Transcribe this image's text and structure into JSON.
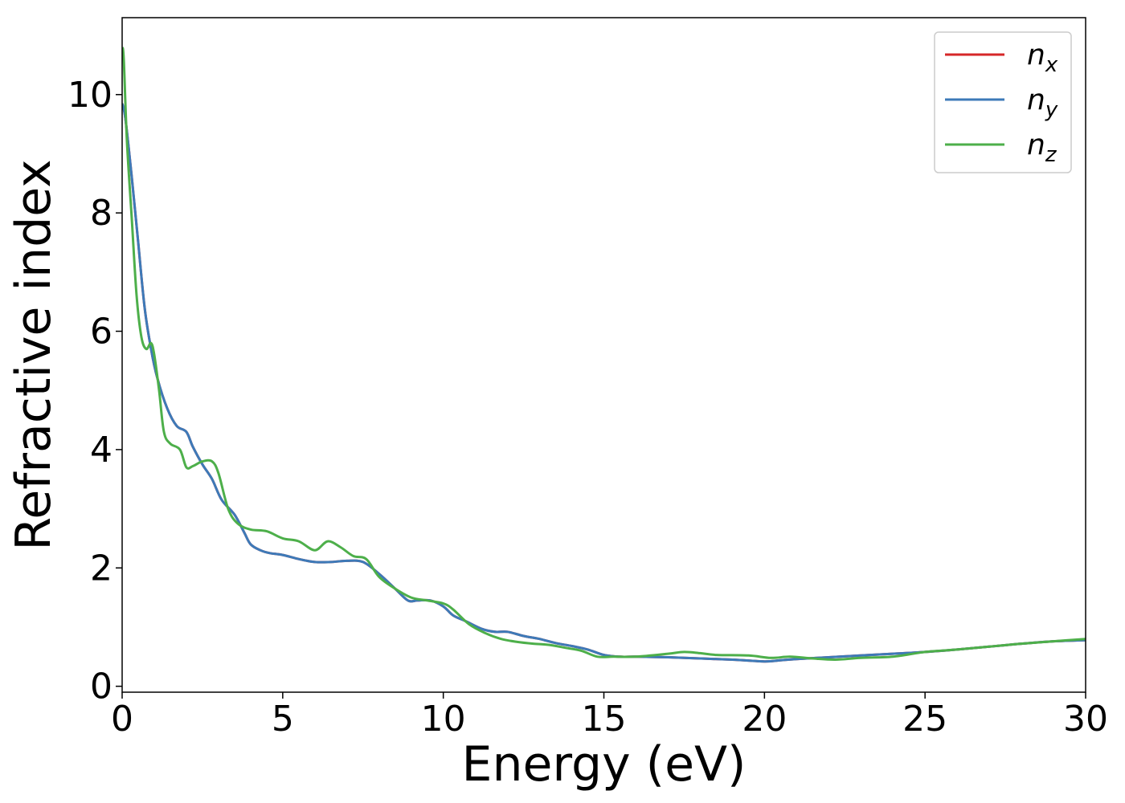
{
  "chart_data": {
    "type": "line",
    "title": "",
    "xlabel": "Energy (eV)",
    "ylabel": "Refractive index",
    "xlim": [
      0,
      30
    ],
    "ylim": [
      -0.1,
      11.3
    ],
    "xticks": [
      0,
      5,
      10,
      15,
      20,
      25,
      30
    ],
    "yticks": [
      0,
      2,
      4,
      6,
      8,
      10
    ],
    "grid": false,
    "legend_position": "top-right",
    "series": [
      {
        "name": "n",
        "subscript": "x",
        "color": "#d62728",
        "x": [
          0,
          0.1,
          0.3,
          0.5,
          0.7,
          0.9,
          1.1,
          1.4,
          1.7,
          2.0,
          2.2,
          2.5,
          2.8,
          3.1,
          3.5,
          3.8,
          4.0,
          4.3,
          4.6,
          5.0,
          5.5,
          6.0,
          6.5,
          7.0,
          7.5,
          8.0,
          8.5,
          8.9,
          9.2,
          9.6,
          10.0,
          10.3,
          10.7,
          11.2,
          11.6,
          12.0,
          12.5,
          13.0,
          13.5,
          14.0,
          14.5,
          15.0,
          15.5,
          16.0,
          17.0,
          18.0,
          19.0,
          20.0,
          20.5,
          21.0,
          22.0,
          23.0,
          24.0,
          25.0,
          26.0,
          27.0,
          28.0,
          29.0,
          30.0
        ],
        "y": [
          9.85,
          9.6,
          8.6,
          7.5,
          6.4,
          5.7,
          5.2,
          4.7,
          4.4,
          4.3,
          4.05,
          3.75,
          3.5,
          3.15,
          2.9,
          2.6,
          2.4,
          2.3,
          2.25,
          2.22,
          2.15,
          2.1,
          2.1,
          2.12,
          2.1,
          1.9,
          1.65,
          1.45,
          1.45,
          1.45,
          1.35,
          1.2,
          1.1,
          0.97,
          0.92,
          0.92,
          0.85,
          0.8,
          0.73,
          0.68,
          0.62,
          0.53,
          0.5,
          0.5,
          0.49,
          0.47,
          0.45,
          0.42,
          0.44,
          0.46,
          0.49,
          0.52,
          0.55,
          0.58,
          0.62,
          0.67,
          0.72,
          0.76,
          0.78
        ]
      },
      {
        "name": "n",
        "subscript": "y",
        "color": "#3d7ab8",
        "x": [
          0,
          0.1,
          0.3,
          0.5,
          0.7,
          0.9,
          1.1,
          1.4,
          1.7,
          2.0,
          2.2,
          2.5,
          2.8,
          3.1,
          3.5,
          3.8,
          4.0,
          4.3,
          4.6,
          5.0,
          5.5,
          6.0,
          6.5,
          7.0,
          7.5,
          8.0,
          8.5,
          8.9,
          9.2,
          9.6,
          10.0,
          10.3,
          10.7,
          11.2,
          11.6,
          12.0,
          12.5,
          13.0,
          13.5,
          14.0,
          14.5,
          15.0,
          15.5,
          16.0,
          17.0,
          18.0,
          19.0,
          20.0,
          20.5,
          21.0,
          22.0,
          23.0,
          24.0,
          25.0,
          26.0,
          27.0,
          28.0,
          29.0,
          30.0
        ],
        "y": [
          9.85,
          9.6,
          8.6,
          7.5,
          6.4,
          5.7,
          5.2,
          4.7,
          4.4,
          4.3,
          4.05,
          3.75,
          3.5,
          3.15,
          2.9,
          2.6,
          2.4,
          2.3,
          2.25,
          2.22,
          2.15,
          2.1,
          2.1,
          2.12,
          2.1,
          1.9,
          1.65,
          1.45,
          1.45,
          1.45,
          1.35,
          1.2,
          1.1,
          0.97,
          0.92,
          0.92,
          0.85,
          0.8,
          0.73,
          0.68,
          0.62,
          0.53,
          0.5,
          0.5,
          0.49,
          0.47,
          0.45,
          0.42,
          0.44,
          0.46,
          0.49,
          0.52,
          0.55,
          0.58,
          0.62,
          0.67,
          0.72,
          0.76,
          0.78
        ]
      },
      {
        "name": "n",
        "subscript": "z",
        "color": "#4daf4a",
        "x": [
          0,
          0.05,
          0.15,
          0.3,
          0.45,
          0.6,
          0.75,
          0.9,
          1.0,
          1.15,
          1.3,
          1.5,
          1.8,
          2.0,
          2.2,
          2.5,
          2.8,
          3.0,
          3.3,
          3.6,
          4.0,
          4.5,
          5.0,
          5.5,
          6.0,
          6.4,
          6.8,
          7.2,
          7.6,
          8.0,
          8.5,
          9.0,
          9.5,
          10.0,
          10.3,
          10.8,
          11.3,
          11.8,
          12.3,
          12.8,
          13.3,
          13.8,
          14.3,
          14.8,
          15.3,
          16.0,
          17.0,
          17.5,
          18.0,
          18.5,
          19.5,
          20.2,
          20.8,
          21.5,
          22.2,
          23.0,
          24.0,
          25.0,
          26.0,
          27.0,
          28.0,
          29.0,
          30.0
        ],
        "y": [
          10.8,
          10.6,
          9.2,
          7.9,
          6.6,
          5.9,
          5.7,
          5.8,
          5.6,
          5.0,
          4.3,
          4.1,
          4.0,
          3.7,
          3.72,
          3.8,
          3.8,
          3.6,
          3.0,
          2.75,
          2.65,
          2.62,
          2.5,
          2.45,
          2.3,
          2.45,
          2.35,
          2.2,
          2.15,
          1.85,
          1.65,
          1.5,
          1.45,
          1.4,
          1.3,
          1.05,
          0.9,
          0.8,
          0.75,
          0.72,
          0.7,
          0.65,
          0.6,
          0.5,
          0.5,
          0.5,
          0.55,
          0.58,
          0.56,
          0.53,
          0.52,
          0.48,
          0.5,
          0.47,
          0.45,
          0.48,
          0.5,
          0.58,
          0.62,
          0.67,
          0.72,
          0.76,
          0.8
        ]
      }
    ]
  }
}
